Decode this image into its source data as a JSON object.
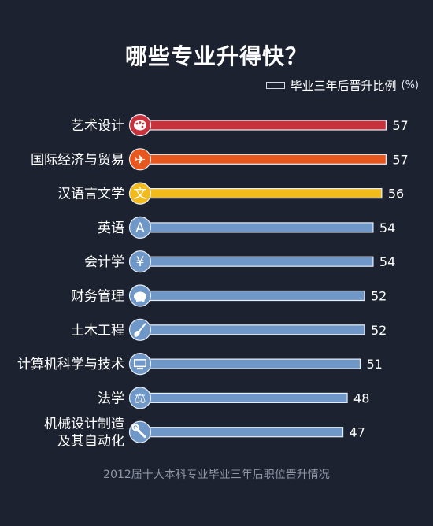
{
  "title": "哪些专业升得快？",
  "legend": {
    "label": "毕业三年后晋升比例",
    "unit": "(%)"
  },
  "footer": "2012届十大本科专业毕业三年后职位晋升情况",
  "colors": {
    "background": "#1c2230",
    "red": "#c8323c",
    "orange": "#e8581e",
    "yellow": "#f2bb1b",
    "blue": "#6f98c8"
  },
  "chart_data": {
    "type": "bar",
    "orientation": "horizontal",
    "categories": [
      "艺术设计",
      "国际经济与贸易",
      "汉语言文学",
      "英语",
      "会计学",
      "财务管理",
      "土木工程",
      "计算机科学与技术",
      "法学",
      "机械设计制造\n及其自动化"
    ],
    "values": [
      57,
      57,
      56,
      54,
      54,
      52,
      52,
      51,
      48,
      47
    ],
    "bar_colors": [
      "#c8323c",
      "#e8581e",
      "#f2bb1b",
      "#6f98c8",
      "#6f98c8",
      "#6f98c8",
      "#6f98c8",
      "#6f98c8",
      "#6f98c8",
      "#6f98c8"
    ],
    "icons": [
      "palette-icon",
      "airplane-icon",
      "wen-character-icon",
      "letter-a-icon",
      "yen-icon",
      "piggy-bank-icon",
      "shovel-icon",
      "monitor-icon",
      "scales-icon",
      "wrench-icon"
    ],
    "icon_glyphs": [
      "",
      "✈",
      "文",
      "A",
      "¥",
      "",
      "",
      "",
      "⚖",
      ""
    ],
    "xlabel": "",
    "ylabel": "",
    "grid": false,
    "legend_position": "top-right"
  }
}
